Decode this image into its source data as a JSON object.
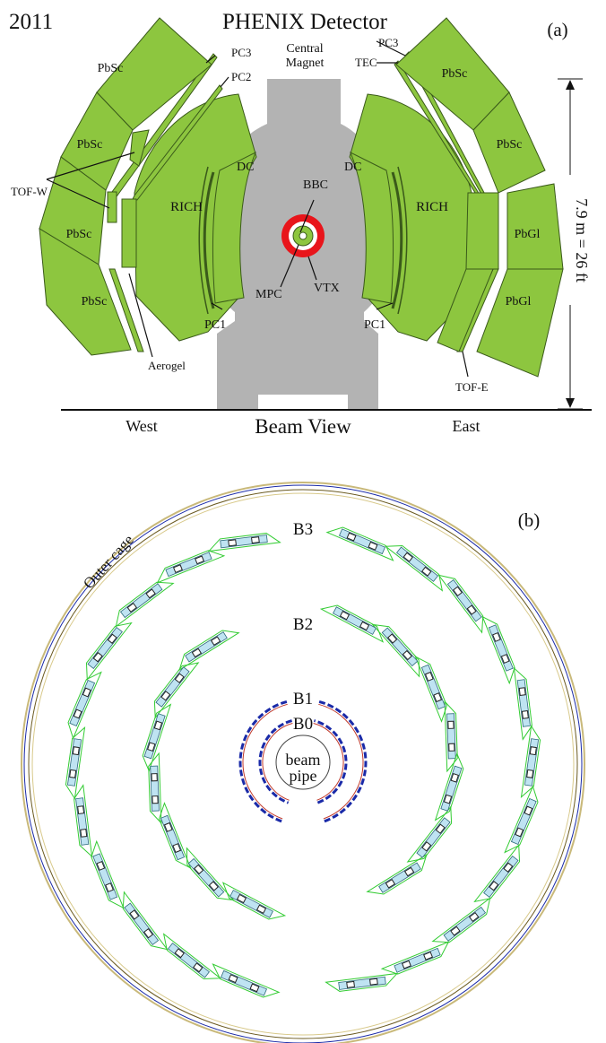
{
  "panel_a": {
    "year": "2011",
    "title": "PHENIX Detector",
    "panel_label": "(a)",
    "magnet_label_1": "Central",
    "magnet_label_2": "Magnet",
    "dimension": "7.9 m = 26 ft",
    "left_side": "West",
    "center_caption": "Beam View",
    "right_side": "East",
    "labels": {
      "pbsc": "PbSc",
      "pbgl": "PbGl",
      "pc1": "PC1",
      "pc2": "PC2",
      "pc3": "PC3",
      "tec": "TEC",
      "tof_w": "TOF-W",
      "tof_e": "TOF-E",
      "aerogel": "Aerogel",
      "rich": "RICH",
      "dc": "DC",
      "bbc": "BBC",
      "mpc": "MPC",
      "vtx": "VTX"
    },
    "colors": {
      "detector_fill": "#8dc63f",
      "detector_edge": "#3a5a1a",
      "magnet": "#b3b3b3",
      "vtx_ring": "#e8151b"
    }
  },
  "panel_b": {
    "panel_label": "(b)",
    "outer_cage": "Outer cage",
    "layers": [
      "B3",
      "B2",
      "B1",
      "B0"
    ],
    "beam_1": "beam",
    "beam_2": "pipe",
    "colors": {
      "ladder_edge": "#33cc33",
      "ladder_fill": "#bfe3f2",
      "pixel": "#1a2aa8",
      "cage_outer": "#c9b97a"
    }
  }
}
